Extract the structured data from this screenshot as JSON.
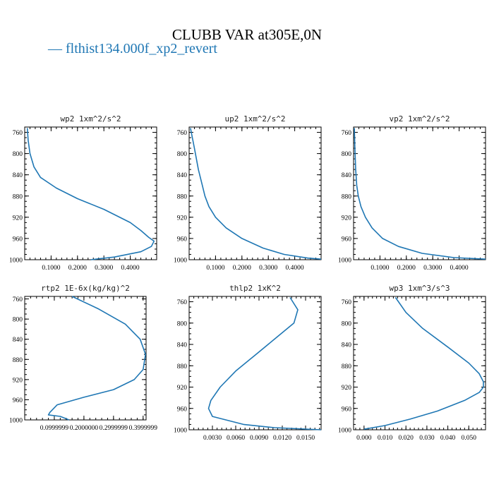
{
  "figure": {
    "title": "CLUBB VAR at305E,0N",
    "legend_label": "flthist134.000f_xp2_revert",
    "series_color": "#1f77b4"
  },
  "chart_data": [
    {
      "type": "line",
      "title": "wp2   1xm^2/s^2",
      "xlim": [
        0.0,
        0.5
      ],
      "ylim": [
        1000,
        750
      ],
      "xticks": [
        0.1,
        0.2,
        0.3,
        0.4
      ],
      "xtick_labels": [
        "0.1000",
        "0.2000",
        "0.3000",
        "0.4000"
      ],
      "yticks": [
        760,
        800,
        840,
        880,
        920,
        960,
        1000
      ],
      "ytick_labels": [
        "760",
        "800",
        "840",
        "880",
        "920",
        "960",
        "1000"
      ],
      "series": [
        {
          "x": [
            0.01,
            0.013,
            0.02,
            0.035,
            0.06,
            0.12,
            0.2,
            0.3,
            0.4,
            0.44,
            0.47,
            0.49,
            0.48,
            0.44,
            0.34,
            0.25
          ],
          "y": [
            752,
            775,
            800,
            825,
            845,
            865,
            885,
            905,
            930,
            945,
            958,
            965,
            975,
            985,
            995,
            1000
          ]
        }
      ]
    },
    {
      "type": "line",
      "title": "up2   1xm^2/s^2",
      "xlim": [
        0.0,
        0.5
      ],
      "ylim": [
        1000,
        750
      ],
      "xticks": [
        0.1,
        0.2,
        0.3,
        0.4
      ],
      "xtick_labels": [
        "0.1000",
        "0.2000",
        "0.3000",
        "0.4000"
      ],
      "yticks": [
        760,
        800,
        840,
        880,
        920,
        960,
        1000
      ],
      "ytick_labels": [
        "760",
        "800",
        "840",
        "880",
        "920",
        "960",
        "1000"
      ],
      "series": [
        {
          "x": [
            0.005,
            0.02,
            0.035,
            0.05,
            0.06,
            0.075,
            0.1,
            0.14,
            0.2,
            0.28,
            0.36,
            0.45,
            0.5
          ],
          "y": [
            752,
            790,
            830,
            860,
            880,
            900,
            920,
            940,
            960,
            978,
            990,
            997,
            999
          ]
        }
      ]
    },
    {
      "type": "line",
      "title": "vp2   1xm^2/s^2",
      "xlim": [
        0.0,
        0.5
      ],
      "ylim": [
        1000,
        750
      ],
      "xticks": [
        0.1,
        0.2,
        0.3,
        0.4
      ],
      "xtick_labels": [
        "0.1000",
        "0.2000",
        "0.3000",
        "0.4000"
      ],
      "yticks": [
        760,
        800,
        840,
        880,
        920,
        960,
        1000
      ],
      "ytick_labels": [
        "760",
        "800",
        "840",
        "880",
        "920",
        "960",
        "1000"
      ],
      "series": [
        {
          "x": [
            0.003,
            0.005,
            0.008,
            0.012,
            0.018,
            0.028,
            0.045,
            0.07,
            0.11,
            0.17,
            0.26,
            0.38,
            0.5
          ],
          "y": [
            752,
            790,
            830,
            860,
            880,
            900,
            920,
            940,
            960,
            975,
            988,
            996,
            999
          ]
        }
      ]
    },
    {
      "type": "line",
      "title": "rtp2   1E-6x(kg/kg)^2",
      "xlim": [
        0.0,
        0.41
      ],
      "ylim": [
        1000,
        755
      ],
      "xticks": [
        0.1,
        0.2,
        0.3,
        0.4
      ],
      "xtick_labels": [
        "0.0999999",
        "0.2000000",
        "0.2999999",
        "0.3999999"
      ],
      "yticks": [
        760,
        800,
        840,
        880,
        920,
        960,
        1000
      ],
      "ytick_labels": [
        "760",
        "800",
        "840",
        "880",
        "920",
        "960",
        "1000"
      ],
      "series": [
        {
          "x": [
            0.16,
            0.25,
            0.34,
            0.39,
            0.408,
            0.4,
            0.37,
            0.3,
            0.2,
            0.11,
            0.085,
            0.08,
            0.12,
            0.15
          ],
          "y": [
            755,
            780,
            810,
            840,
            870,
            900,
            920,
            940,
            955,
            970,
            985,
            990,
            993,
            1000
          ]
        }
      ]
    },
    {
      "type": "line",
      "title": "thlp2   1xK^2",
      "xlim": [
        0.0,
        0.017
      ],
      "ylim": [
        1000,
        750
      ],
      "xticks": [
        0.003,
        0.006,
        0.009,
        0.012,
        0.015
      ],
      "xtick_labels": [
        "0.0030",
        "0.0060",
        "0.0090",
        "0.0120",
        "0.0150"
      ],
      "yticks": [
        760,
        800,
        840,
        880,
        920,
        960,
        1000
      ],
      "ytick_labels": [
        "760",
        "800",
        "840",
        "880",
        "920",
        "960",
        "1000"
      ],
      "series": [
        {
          "x": [
            0.013,
            0.014,
            0.0135,
            0.011,
            0.0085,
            0.006,
            0.004,
            0.0028,
            0.0025,
            0.003,
            0.007,
            0.011,
            0.017
          ],
          "y": [
            752,
            775,
            800,
            830,
            860,
            890,
            920,
            945,
            960,
            975,
            990,
            996,
            1000
          ]
        }
      ]
    },
    {
      "type": "line",
      "title": "wp3   1xm^3/s^3",
      "xlim": [
        -0.005,
        0.058
      ],
      "ylim": [
        1000,
        750
      ],
      "xticks": [
        0.0,
        0.01,
        0.02,
        0.03,
        0.04,
        0.05
      ],
      "xtick_labels": [
        "0.000",
        "0.010",
        "0.020",
        "0.030",
        "0.040",
        "0.050"
      ],
      "yticks": [
        760,
        800,
        840,
        880,
        920,
        960,
        1000
      ],
      "ytick_labels": [
        "760",
        "800",
        "840",
        "880",
        "920",
        "960",
        "1000"
      ],
      "series": [
        {
          "x": [
            0.015,
            0.02,
            0.028,
            0.04,
            0.05,
            0.055,
            0.057,
            0.057,
            0.055,
            0.048,
            0.035,
            0.022,
            0.01,
            0.0
          ],
          "y": [
            752,
            780,
            810,
            845,
            875,
            895,
            910,
            920,
            930,
            945,
            965,
            980,
            992,
            999
          ]
        }
      ]
    }
  ]
}
